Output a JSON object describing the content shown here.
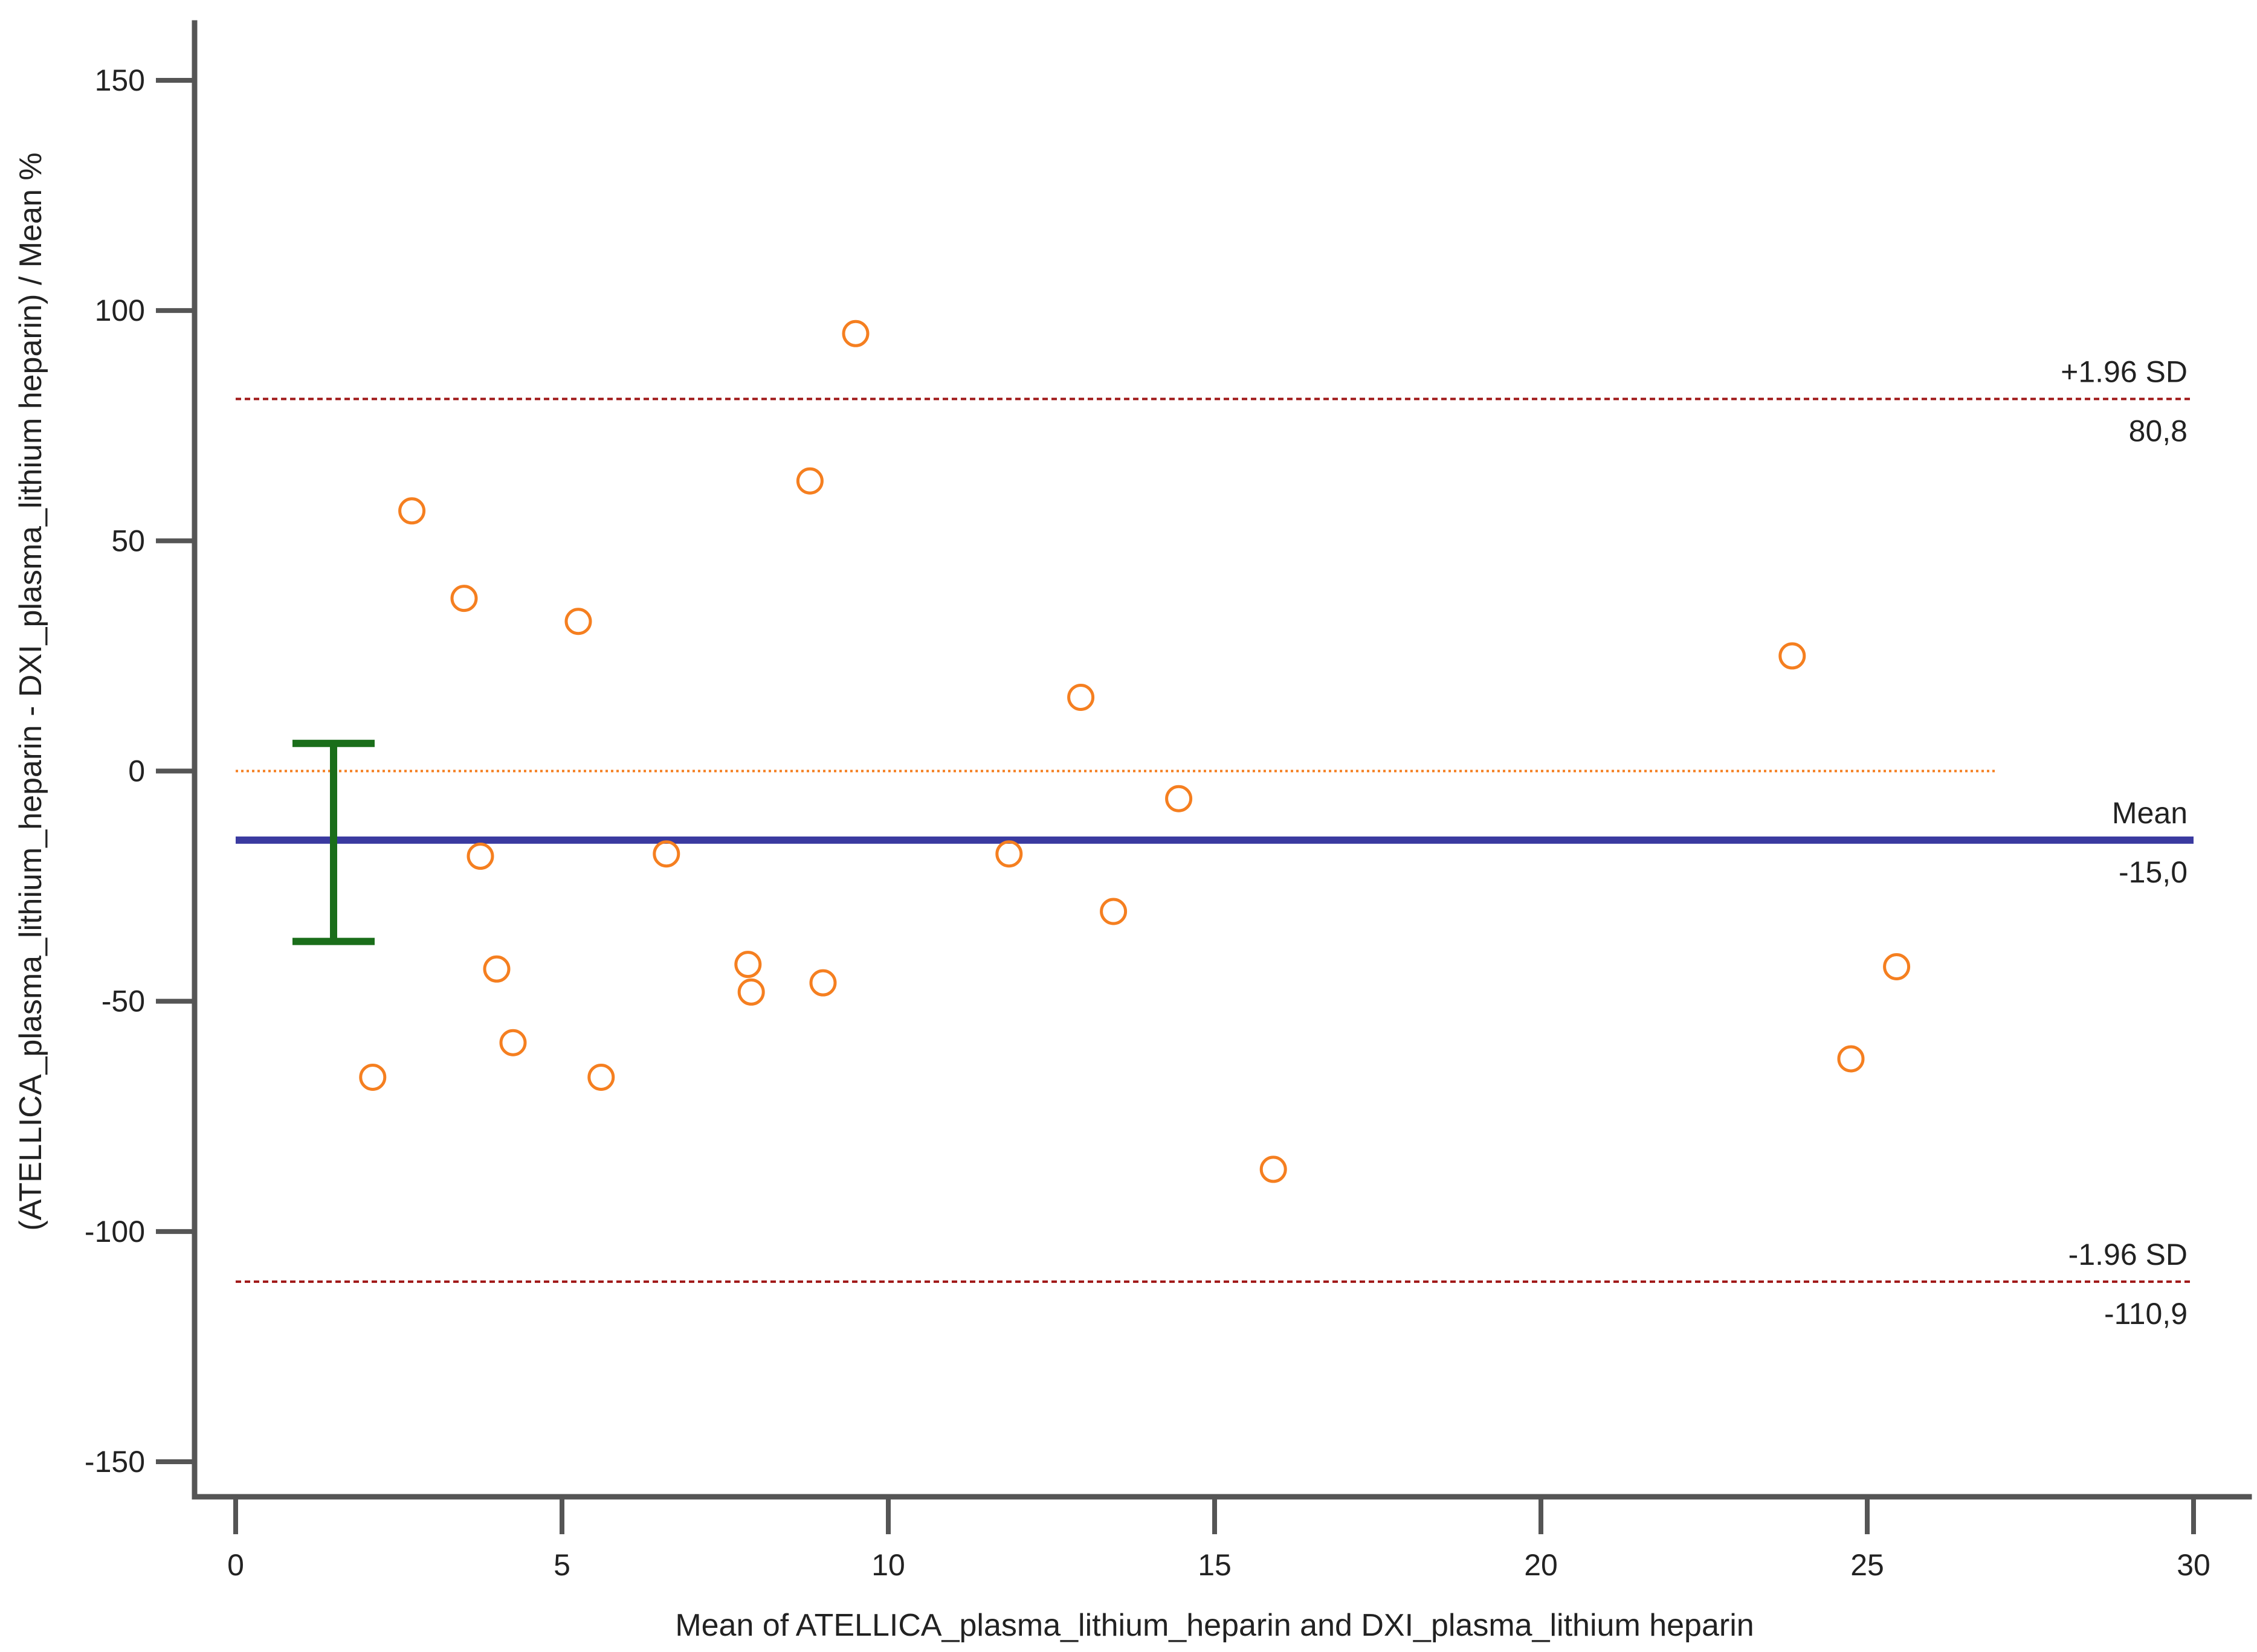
{
  "chart_data": {
    "type": "scatter",
    "title": "",
    "xlabel": "Mean of ATELLICA_plasma_lithium_heparin and DXI_plasma_lithium heparin",
    "ylabel": "(ATELLICA_plasma_lithium_heparin - DXI_plasma_lithium heparin) / Mean %",
    "xlim": [
      0,
      30
    ],
    "ylim": [
      -150,
      150
    ],
    "xticks": [
      0,
      5,
      10,
      15,
      20,
      25,
      30
    ],
    "yticks": [
      -150,
      -100,
      -50,
      0,
      50,
      100,
      150
    ],
    "xtick_labels": [
      "0",
      "5",
      "10",
      "15",
      "20",
      "25",
      "30"
    ],
    "ytick_labels": [
      "-150",
      "-100",
      "-50",
      "0",
      "50",
      "100",
      "150"
    ],
    "grid": false,
    "points": [
      {
        "x": 2.1,
        "y": -66.5
      },
      {
        "x": 2.7,
        "y": 56.5
      },
      {
        "x": 3.5,
        "y": 37.5
      },
      {
        "x": 3.75,
        "y": -18.5
      },
      {
        "x": 4.0,
        "y": -43.0
      },
      {
        "x": 4.25,
        "y": -59.0
      },
      {
        "x": 5.25,
        "y": 32.5
      },
      {
        "x": 5.6,
        "y": -66.5
      },
      {
        "x": 6.6,
        "y": -18.0
      },
      {
        "x": 7.85,
        "y": -42.0
      },
      {
        "x": 7.9,
        "y": -48.0
      },
      {
        "x": 8.8,
        "y": 63.0
      },
      {
        "x": 9.0,
        "y": -46.0
      },
      {
        "x": 9.5,
        "y": 95.0
      },
      {
        "x": 11.85,
        "y": -18.0
      },
      {
        "x": 12.95,
        "y": 16.0
      },
      {
        "x": 13.45,
        "y": -30.5
      },
      {
        "x": 14.45,
        "y": -6.0
      },
      {
        "x": 15.9,
        "y": -86.5
      },
      {
        "x": 23.85,
        "y": 25.0
      },
      {
        "x": 24.75,
        "y": -62.5
      },
      {
        "x": 25.45,
        "y": -42.5
      }
    ],
    "zero_line": {
      "y": 0,
      "x_range": [
        0,
        27
      ]
    },
    "mean_line": {
      "y": -15.0,
      "label": "Mean",
      "value_label": "-15,0"
    },
    "upper_loa": {
      "y": 80.8,
      "label": "+1.96 SD",
      "value_label": "80,8"
    },
    "lower_loa": {
      "y": -110.9,
      "label": "-1.96 SD",
      "value_label": "-110,9"
    },
    "mean_ci": {
      "x": 1.5,
      "lower": -37.0,
      "upper": 6.0
    },
    "colors": {
      "points": "#f57f20",
      "mean_line": "#3a3aa0",
      "loa_lines": "#a01818",
      "zero_line": "#f57f20",
      "ci_bar": "#1a6e1a",
      "axes": "#555555"
    }
  }
}
